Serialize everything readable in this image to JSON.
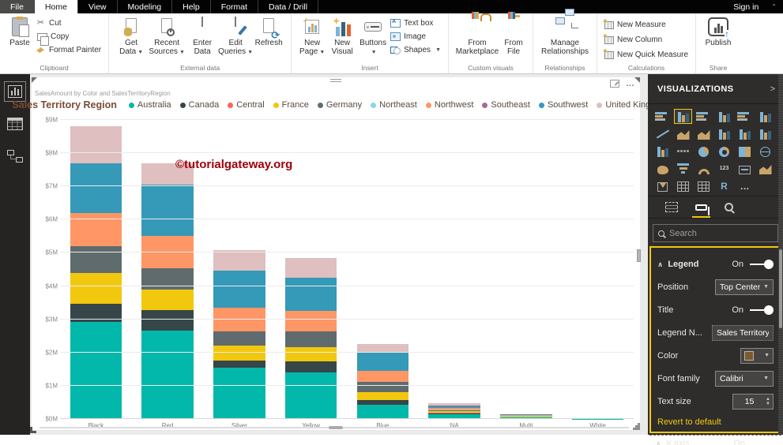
{
  "app": {
    "tabs": [
      "File",
      "Home",
      "View",
      "Modeling",
      "Help",
      "Format",
      "Data / Drill"
    ],
    "sign_in": "Sign in"
  },
  "ribbon": {
    "groups": [
      {
        "label": "Clipboard",
        "paste": "Paste",
        "cut": "Cut",
        "copy": "Copy",
        "format_painter": "Format Painter"
      },
      {
        "label": "External data",
        "get_data": "Get Data",
        "recent_sources": "Recent Sources",
        "enter_data": "Enter Data",
        "edit_queries": "Edit Queries",
        "refresh": "Refresh"
      },
      {
        "label": "Insert",
        "new_page": "New Page",
        "new_visual": "New Visual",
        "buttons": "Buttons",
        "text_box": "Text box",
        "image": "Image",
        "shapes": "Shapes"
      },
      {
        "label": "Custom visuals",
        "from_marketplace": "From Marketplace",
        "from_file": "From File"
      },
      {
        "label": "Relationships",
        "manage_relationships": "Manage Relationships"
      },
      {
        "label": "Calculations",
        "new_measure": "New Measure",
        "new_column": "New Column",
        "new_quick_measure": "New Quick Measure"
      },
      {
        "label": "Share",
        "publish": "Publish"
      }
    ]
  },
  "sidebar": {
    "views": [
      "Report",
      "Data",
      "Model"
    ]
  },
  "visual": {
    "header": "SalesAmount by Color and SalesTerritoryRegion",
    "watermark": "©tutorialgateway.org"
  },
  "chart_data": {
    "type": "bar",
    "stacked": true,
    "title": "SalesAmount by Color and SalesTerritoryRegion",
    "legend_title": "Sales Territory Region",
    "legend_position": "top-center",
    "grid": true,
    "categories": [
      "Black",
      "Red",
      "Silver",
      "Yellow",
      "Blue",
      "NA",
      "Multi",
      "White"
    ],
    "series": [
      {
        "name": "Australia",
        "color": "#01B8AA",
        "values": [
          2.92,
          2.66,
          1.54,
          1.4,
          0.43,
          0.14,
          0.04,
          0.01
        ]
      },
      {
        "name": "Canada",
        "color": "#374649",
        "values": [
          0.55,
          0.62,
          0.22,
          0.33,
          0.14,
          0.03,
          0.01,
          0.002
        ]
      },
      {
        "name": "Central",
        "color": "#FD625E",
        "values": [
          0,
          0,
          0,
          0,
          0,
          0.02,
          0.01,
          0
        ]
      },
      {
        "name": "France",
        "color": "#F2C80F",
        "values": [
          0.92,
          0.62,
          0.45,
          0.43,
          0.24,
          0.04,
          0.01,
          0.002
        ]
      },
      {
        "name": "Germany",
        "color": "#5F6B6D",
        "values": [
          0.81,
          0.64,
          0.43,
          0.48,
          0.31,
          0.03,
          0.01,
          0.002
        ]
      },
      {
        "name": "Northeast",
        "color": "#8AD4EB",
        "values": [
          0,
          0,
          0,
          0,
          0,
          0.02,
          0.01,
          0
        ]
      },
      {
        "name": "Northwest",
        "color": "#FE9666",
        "values": [
          1.0,
          0.97,
          0.71,
          0.62,
          0.33,
          0.05,
          0.02,
          0.002
        ]
      },
      {
        "name": "Southeast",
        "color": "#A66999",
        "values": [
          0,
          0,
          0,
          0,
          0,
          0.02,
          0.005,
          0
        ]
      },
      {
        "name": "Southwest",
        "color": "#3599B8",
        "values": [
          1.5,
          1.55,
          1.12,
          0.99,
          0.55,
          0.06,
          0.02,
          0.004
        ]
      },
      {
        "name": "United Kingdom",
        "color": "#DFBFBF",
        "values": [
          1.12,
          0.64,
          0.61,
          0.6,
          0.26,
          0.06,
          0.015,
          0.002
        ]
      }
    ],
    "y_ticks": [
      "$0M",
      "$1M",
      "$2M",
      "$3M",
      "$4M",
      "$5M",
      "$6M",
      "$7M",
      "$8M",
      "$9M"
    ],
    "ylim": [
      0,
      9
    ],
    "xlabel": "",
    "ylabel": ""
  },
  "viz_panel": {
    "title": "VISUALIZATIONS",
    "chevron": ">",
    "search_placeholder": "Search",
    "icons": [
      {
        "name": "stacked-bar-chart",
        "t": "h"
      },
      {
        "name": "stacked-column-chart",
        "t": "v",
        "selected": true
      },
      {
        "name": "clustered-bar-chart",
        "t": "h"
      },
      {
        "name": "clustered-column-chart",
        "t": "v"
      },
      {
        "name": "100-stacked-bar-chart",
        "t": "h"
      },
      {
        "name": "100-stacked-column-chart",
        "t": "v"
      },
      {
        "name": "line-chart",
        "t": "line"
      },
      {
        "name": "area-chart",
        "t": "area"
      },
      {
        "name": "stacked-area-chart",
        "t": "area"
      },
      {
        "name": "line-and-stacked-column-chart",
        "t": "v"
      },
      {
        "name": "line-and-clustered-column-chart",
        "t": "v"
      },
      {
        "name": "ribbon-chart",
        "t": "v"
      },
      {
        "name": "waterfall-chart",
        "t": "v"
      },
      {
        "name": "scatter-chart",
        "t": "dots"
      },
      {
        "name": "pie-chart",
        "t": "pie"
      },
      {
        "name": "donut-chart",
        "t": "donut"
      },
      {
        "name": "treemap",
        "t": "grid2"
      },
      {
        "name": "map",
        "t": "globe"
      },
      {
        "name": "filled-map",
        "t": "blob"
      },
      {
        "name": "funnel",
        "t": "funnel"
      },
      {
        "name": "gauge",
        "t": "gauge"
      },
      {
        "name": "card",
        "t": "text",
        "g": "123"
      },
      {
        "name": "multi-row-card",
        "t": "card"
      },
      {
        "name": "kpi",
        "t": "area"
      },
      {
        "name": "slicer",
        "t": "slicer"
      },
      {
        "name": "table",
        "t": "grid"
      },
      {
        "name": "matrix",
        "t": "grid"
      },
      {
        "name": "r-script-visual",
        "t": "text",
        "g": "R"
      },
      {
        "name": "more-options",
        "t": "text",
        "g": "…"
      }
    ],
    "format": {
      "section_title": "Legend",
      "section_on": "On",
      "position_label": "Position",
      "position_value": "Top Center",
      "title_label": "Title",
      "title_on": "On",
      "legend_name_label": "Legend N...",
      "legend_name_value": "Sales Territory...",
      "color_label": "Color",
      "color_swatch": "#7B5A2D",
      "font_family_label": "Font family",
      "font_family_value": "Calibri",
      "text_size_label": "Text size",
      "text_size_value": "15",
      "revert_label": "Revert to default",
      "next_section_label": "X axis",
      "next_section_on": "On"
    }
  }
}
